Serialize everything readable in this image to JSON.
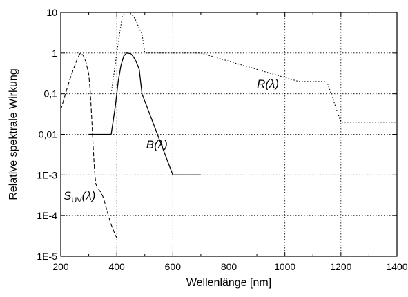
{
  "chart_data": {
    "type": "line",
    "xlabel": "Wellenlänge [nm]",
    "ylabel": "Relative spektrale Wirkung",
    "xlim": [
      200,
      1400
    ],
    "ylim": [
      1e-05,
      10
    ],
    "yscale": "log",
    "grid": true,
    "x_ticks": [
      200,
      400,
      600,
      800,
      1000,
      1200,
      1400
    ],
    "x_tick_labels": [
      "200",
      "400",
      "600",
      "800",
      "1000",
      "1200",
      "1400"
    ],
    "y_ticks": [
      1e-05,
      0.0001,
      0.001,
      0.01,
      0.1,
      1,
      10
    ],
    "y_tick_labels": [
      "1E-5",
      "1E-4",
      "1E-3",
      "0,01",
      "0,1",
      "1",
      "10"
    ],
    "series": [
      {
        "name": "S_UV(λ)",
        "label_main": "S",
        "label_sub": "UV",
        "label_tail": "(λ)",
        "style": "dashed",
        "points": [
          [
            200,
            0.04
          ],
          [
            215,
            0.09
          ],
          [
            230,
            0.2
          ],
          [
            245,
            0.4
          ],
          [
            260,
            0.75
          ],
          [
            270,
            1.0
          ],
          [
            280,
            0.88
          ],
          [
            290,
            0.6
          ],
          [
            300,
            0.3
          ],
          [
            305,
            0.12
          ],
          [
            310,
            0.03
          ],
          [
            315,
            0.006
          ],
          [
            320,
            0.0015
          ],
          [
            325,
            0.0006
          ],
          [
            330,
            0.0005
          ],
          [
            340,
            0.0004
          ],
          [
            350,
            0.0003
          ],
          [
            360,
            0.00018
          ],
          [
            370,
            0.0001
          ],
          [
            380,
            6e-05
          ],
          [
            390,
            4e-05
          ],
          [
            400,
            2.8e-05
          ]
        ]
      },
      {
        "name": "B(λ)",
        "label_main": "B",
        "label_sub": "",
        "label_tail": "(λ)",
        "style": "solid",
        "points": [
          [
            300,
            0.01
          ],
          [
            380,
            0.01
          ],
          [
            395,
            0.05
          ],
          [
            405,
            0.2
          ],
          [
            415,
            0.5
          ],
          [
            425,
            0.85
          ],
          [
            435,
            1.0
          ],
          [
            450,
            0.97
          ],
          [
            460,
            0.8
          ],
          [
            470,
            0.6
          ],
          [
            480,
            0.4
          ],
          [
            485,
            0.2
          ],
          [
            490,
            0.1
          ],
          [
            600,
            0.001
          ],
          [
            700,
            0.001
          ]
        ]
      },
      {
        "name": "R(λ)",
        "label_main": "R",
        "label_sub": "",
        "label_tail": "(λ)",
        "style": "dotted",
        "points": [
          [
            380,
            0.1
          ],
          [
            400,
            1.0
          ],
          [
            410,
            3.0
          ],
          [
            420,
            8.0
          ],
          [
            430,
            10.0
          ],
          [
            445,
            10.0
          ],
          [
            460,
            8.0
          ],
          [
            470,
            6.0
          ],
          [
            480,
            4.0
          ],
          [
            490,
            3.0
          ],
          [
            500,
            1.0
          ],
          [
            700,
            1.0
          ],
          [
            1050,
            0.2
          ],
          [
            1150,
            0.2
          ],
          [
            1200,
            0.02
          ],
          [
            1400,
            0.02
          ]
        ]
      }
    ]
  }
}
